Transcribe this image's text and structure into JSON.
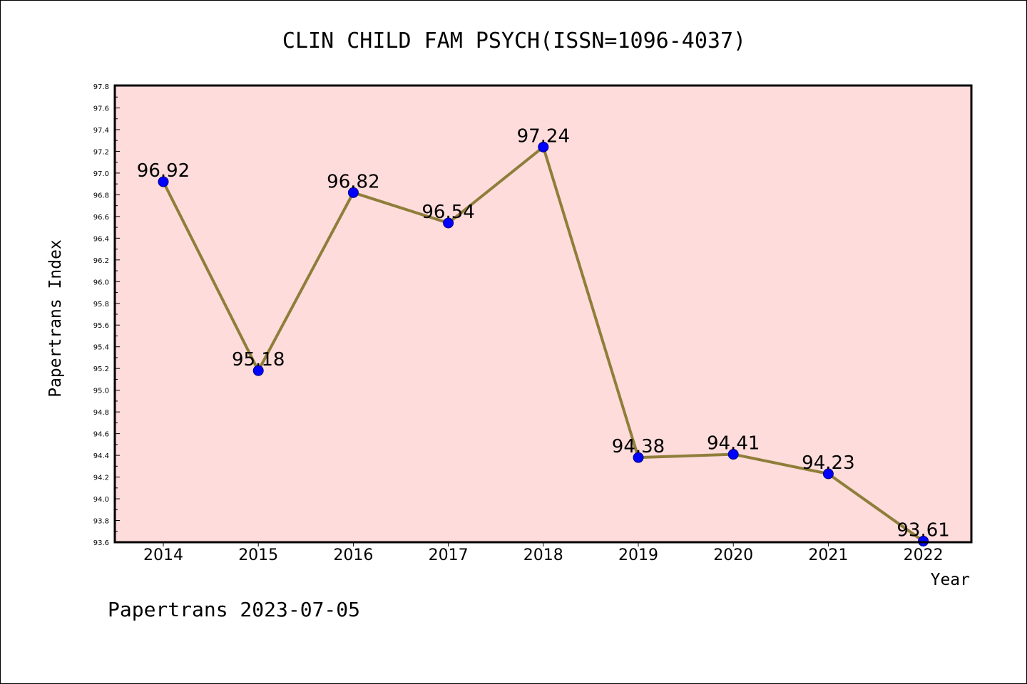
{
  "chart_data": {
    "type": "line",
    "title": "CLIN CHILD FAM PSYCH(ISSN=1096-4037)",
    "xlabel": "Year",
    "ylabel": "Papertrans Index",
    "categories": [
      "2014",
      "2015",
      "2016",
      "2017",
      "2018",
      "2019",
      "2020",
      "2021",
      "2022"
    ],
    "values": [
      96.92,
      95.18,
      96.82,
      96.54,
      97.24,
      94.38,
      94.41,
      94.23,
      93.61
    ],
    "data_labels": [
      "96.92",
      "95.18",
      "96.82",
      "96.54",
      "97.24",
      "94.38",
      "94.41",
      "94.23",
      "93.61"
    ],
    "ylim": [
      93.6,
      97.8
    ],
    "yticks": [
      "93.6",
      "93.8",
      "94.0",
      "94.2",
      "94.4",
      "94.6",
      "94.8",
      "95.0",
      "95.2",
      "95.4",
      "95.6",
      "95.8",
      "96.0",
      "96.2",
      "96.4",
      "96.6",
      "96.8",
      "97.0",
      "97.2",
      "97.4",
      "97.6",
      "97.8"
    ],
    "grid": false,
    "legend": "none",
    "colors": {
      "plot_background": "#fddcdb",
      "line": "#8f7e3a",
      "marker": "#0000ff",
      "marker_edge": "#00007a"
    }
  },
  "footer": {
    "text": "Papertrans 2023-07-05"
  }
}
